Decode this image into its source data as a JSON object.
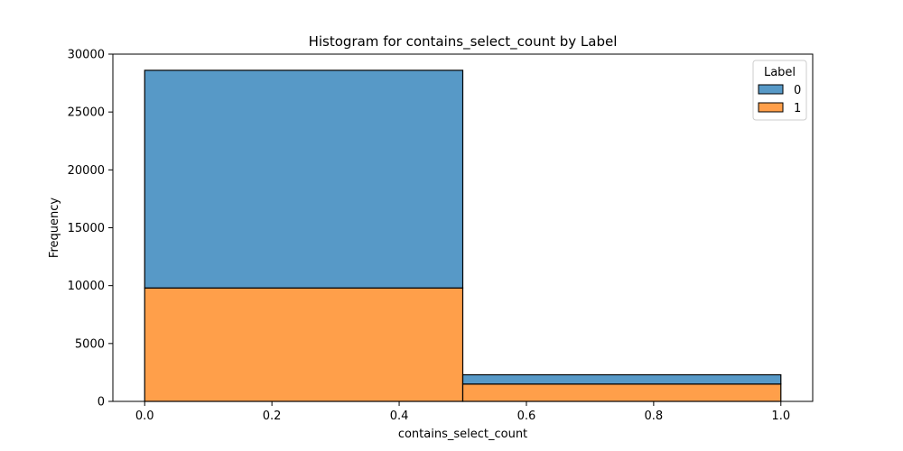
{
  "chart_data": {
    "type": "bar",
    "stacked": true,
    "title": "Histogram for contains_select_count by Label",
    "xlabel": "contains_select_count",
    "ylabel": "Frequency",
    "xlim": [
      -0.05,
      1.05
    ],
    "ylim": [
      0,
      30000
    ],
    "xticks": [
      0.0,
      0.2,
      0.4,
      0.6,
      0.8,
      1.0
    ],
    "xtick_labels": [
      "0.0",
      "0.2",
      "0.4",
      "0.6",
      "0.8",
      "1.0"
    ],
    "yticks": [
      0,
      5000,
      10000,
      15000,
      20000,
      25000,
      30000
    ],
    "ytick_labels": [
      "0",
      "5000",
      "10000",
      "15000",
      "20000",
      "25000",
      "30000"
    ],
    "bins": [
      [
        0.0,
        0.5
      ],
      [
        0.5,
        1.0
      ]
    ],
    "series": [
      {
        "name": "1",
        "color": "#ff9f4a",
        "values": [
          9800,
          1500
        ]
      },
      {
        "name": "0",
        "color": "#5799c7",
        "values": [
          18800,
          800
        ]
      }
    ],
    "legend": {
      "title": "Label",
      "placement": "top-right",
      "entries": [
        {
          "label": "0",
          "color": "#5799c7"
        },
        {
          "label": "1",
          "color": "#ff9f4a"
        }
      ]
    },
    "grid": false
  }
}
